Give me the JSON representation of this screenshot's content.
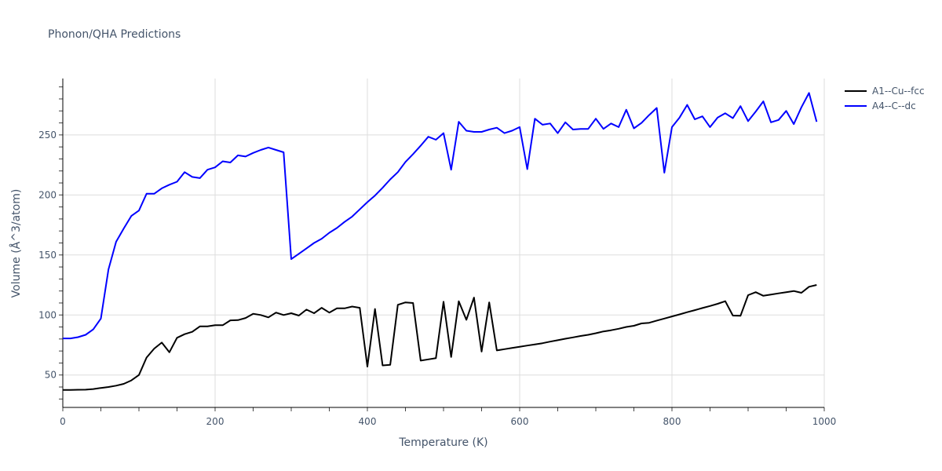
{
  "title": "Phonon/QHA Predictions",
  "legend": {
    "items": [
      {
        "label": "A1--Cu--fcc",
        "color": "#000000"
      },
      {
        "label": "A4--C--dc",
        "color": "#0000ff"
      }
    ]
  },
  "chart_data": {
    "type": "line",
    "title": "Phonon/QHA Predictions",
    "xlabel": "Temperature (K)",
    "ylabel": "Volume (Å^3/atom)",
    "xlim": [
      0,
      1000
    ],
    "ylim": [
      23,
      297
    ],
    "x_ticks": [
      0,
      200,
      400,
      600,
      800,
      1000
    ],
    "y_ticks": [
      50,
      100,
      150,
      200,
      250
    ],
    "grid": true,
    "legend_position": "right-top",
    "x": [
      0,
      10,
      20,
      30,
      40,
      50,
      60,
      70,
      80,
      90,
      100,
      110,
      120,
      130,
      140,
      150,
      160,
      170,
      180,
      190,
      200,
      210,
      220,
      230,
      240,
      250,
      260,
      270,
      280,
      290,
      300,
      310,
      320,
      330,
      340,
      350,
      360,
      370,
      380,
      390,
      400,
      410,
      420,
      430,
      440,
      450,
      460,
      470,
      480,
      490,
      500,
      510,
      520,
      530,
      540,
      550,
      560,
      570,
      580,
      590,
      600,
      610,
      620,
      630,
      640,
      650,
      660,
      670,
      680,
      690,
      700,
      710,
      720,
      730,
      740,
      750,
      760,
      770,
      780,
      790,
      800,
      810,
      820,
      830,
      840,
      850,
      860,
      870,
      880,
      890,
      900,
      910,
      920,
      930,
      940,
      950,
      960,
      970,
      980,
      990
    ],
    "series": [
      {
        "name": "A1--Cu--fcc",
        "color": "#000000",
        "values": [
          37.5,
          37.6,
          37.7,
          37.8,
          38.3,
          39.2,
          40.0,
          41.1,
          42.6,
          45.5,
          50.0,
          64.5,
          72.0,
          77.0,
          69.0,
          81.0,
          84.0,
          86.0,
          90.5,
          90.5,
          91.5,
          91.5,
          95.5,
          95.7,
          97.5,
          101.0,
          100.0,
          98.0,
          102.0,
          100.0,
          101.5,
          99.5,
          104.5,
          101.5,
          106.0,
          102.0,
          105.5,
          105.5,
          107.0,
          106.0,
          57.0,
          105.0,
          58.0,
          58.5,
          108.5,
          110.5,
          110.0,
          62.0,
          63.0,
          64.0,
          111.0,
          65.0,
          111.5,
          96.0,
          114.5,
          69.5,
          110.5,
          70.5,
          71.5,
          72.5,
          73.5,
          74.5,
          75.5,
          76.5,
          77.8,
          79.0,
          80.2,
          81.3,
          82.5,
          83.5,
          84.8,
          86.3,
          87.3,
          88.5,
          90.0,
          91.0,
          93.0,
          93.5,
          95.3,
          97.0,
          98.8,
          100.5,
          102.3,
          104.0,
          105.8,
          107.5,
          109.3,
          111.5,
          99.5,
          99.3,
          116.5,
          119.0,
          116.0,
          117.0,
          118.0,
          119.0,
          120.0,
          118.5,
          123.5,
          125.0
        ]
      },
      {
        "name": "A4--C--dc",
        "color": "#0000ff",
        "values": [
          80.5,
          80.5,
          81.5,
          83.5,
          88.0,
          97.0,
          138.0,
          161.0,
          172.0,
          182.5,
          187.0,
          201.0,
          201.0,
          205.5,
          208.5,
          211.0,
          219.0,
          215.0,
          214.0,
          221.0,
          223.0,
          228.0,
          227.0,
          233.0,
          232.0,
          235.0,
          237.5,
          239.5,
          237.5,
          235.5,
          146.5,
          151.0,
          155.5,
          160.0,
          163.5,
          168.5,
          172.5,
          177.5,
          182.0,
          188.0,
          194.0,
          199.5,
          206.0,
          213.0,
          219.0,
          227.5,
          234.0,
          241.0,
          248.5,
          246.0,
          251.5,
          221.0,
          261.0,
          253.5,
          252.5,
          252.5,
          254.5,
          256.0,
          251.5,
          253.5,
          256.5,
          221.5,
          263.5,
          258.5,
          259.5,
          251.5,
          260.5,
          254.5,
          255.0,
          255.0,
          263.5,
          255.0,
          259.5,
          256.5,
          271.0,
          255.5,
          260.0,
          266.5,
          272.5,
          218.5,
          256.5,
          264.5,
          275.0,
          263.0,
          265.5,
          256.5,
          264.5,
          268.0,
          264.0,
          274.0,
          261.5,
          269.5,
          278.0,
          260.5,
          262.5,
          270.0,
          259.0,
          273.0,
          285.0,
          261.0
        ]
      }
    ]
  }
}
